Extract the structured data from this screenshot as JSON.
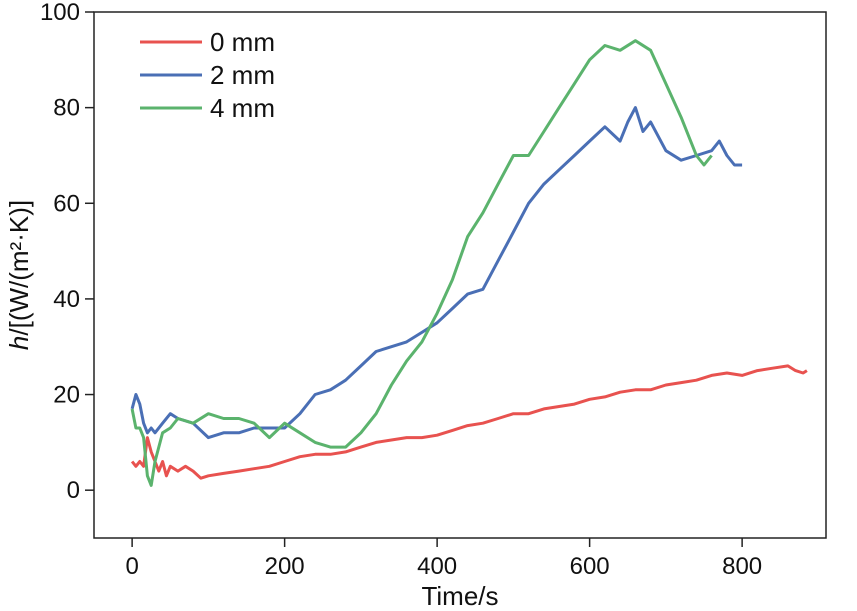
{
  "chart_data": {
    "type": "line",
    "title": "",
    "xlabel": "Time/s",
    "ylabel_italic": "h",
    "ylabel_rest": "/[(W/(m²·K)]",
    "xlim": [
      -50,
      910
    ],
    "ylim": [
      -10,
      100
    ],
    "xticks": [
      0,
      200,
      400,
      600,
      800
    ],
    "yticks": [
      0,
      20,
      40,
      60,
      80,
      100
    ],
    "grid": false,
    "legend_position": "top-left",
    "series": [
      {
        "name": "0 mm",
        "color": "#e8524f",
        "x": [
          0,
          5,
          10,
          15,
          20,
          25,
          30,
          35,
          40,
          45,
          50,
          60,
          70,
          80,
          90,
          100,
          120,
          140,
          160,
          180,
          200,
          220,
          240,
          260,
          280,
          300,
          320,
          340,
          360,
          380,
          400,
          420,
          440,
          460,
          480,
          500,
          520,
          540,
          560,
          580,
          600,
          620,
          640,
          660,
          680,
          700,
          720,
          740,
          760,
          780,
          800,
          820,
          840,
          860,
          870,
          880,
          885
        ],
        "y": [
          6,
          5,
          6,
          5,
          11,
          8,
          6,
          4,
          6,
          3,
          5,
          4,
          5,
          4,
          2.5,
          3,
          3.5,
          4,
          4.5,
          5,
          6,
          7,
          7.5,
          7.5,
          8,
          9,
          10,
          10.5,
          11,
          11,
          11.5,
          12.5,
          13.5,
          14,
          15,
          16,
          16,
          17,
          17.5,
          18,
          19,
          19.5,
          20.5,
          21,
          21,
          22,
          22.5,
          23,
          24,
          24.5,
          24,
          25,
          25.5,
          26,
          25,
          24.5,
          25
        ]
      },
      {
        "name": "2 mm",
        "color": "#4a6fb5",
        "x": [
          0,
          5,
          10,
          15,
          20,
          25,
          30,
          40,
          50,
          60,
          80,
          100,
          120,
          140,
          160,
          180,
          200,
          220,
          240,
          260,
          280,
          300,
          320,
          340,
          360,
          380,
          400,
          420,
          440,
          460,
          480,
          500,
          520,
          540,
          560,
          580,
          600,
          620,
          640,
          650,
          660,
          670,
          680,
          700,
          720,
          740,
          760,
          770,
          780,
          790,
          800
        ],
        "y": [
          17,
          20,
          18,
          14,
          12,
          13,
          12,
          14,
          16,
          15,
          14,
          11,
          12,
          12,
          13,
          13,
          13,
          16,
          20,
          21,
          23,
          26,
          29,
          30,
          31,
          33,
          35,
          38,
          41,
          42,
          48,
          54,
          60,
          64,
          67,
          70,
          73,
          76,
          73,
          77,
          80,
          75,
          77,
          71,
          69,
          70,
          71,
          73,
          70,
          68,
          68
        ]
      },
      {
        "name": "4 mm",
        "color": "#5bb36d",
        "x": [
          0,
          5,
          10,
          15,
          20,
          25,
          30,
          40,
          50,
          60,
          80,
          100,
          120,
          140,
          160,
          180,
          200,
          220,
          240,
          260,
          280,
          300,
          320,
          340,
          360,
          380,
          400,
          420,
          440,
          460,
          480,
          500,
          520,
          540,
          560,
          580,
          600,
          620,
          640,
          660,
          680,
          700,
          720,
          740,
          750,
          760
        ],
        "y": [
          17,
          13,
          13,
          11,
          3,
          1,
          6,
          12,
          13,
          15,
          14,
          16,
          15,
          15,
          14,
          11,
          14,
          12,
          10,
          9,
          9,
          12,
          16,
          22,
          27,
          31,
          37,
          44,
          53,
          58,
          64,
          70,
          70,
          75,
          80,
          85,
          90,
          93,
          92,
          94,
          92,
          85,
          78,
          70,
          68,
          70
        ]
      }
    ]
  }
}
